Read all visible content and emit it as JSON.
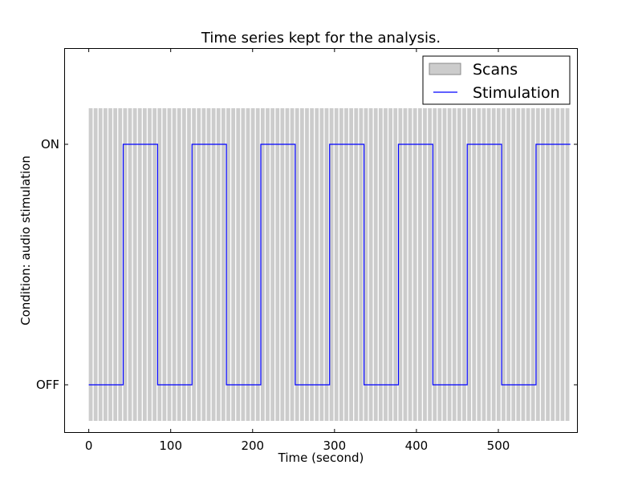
{
  "chart_data": {
    "type": "line",
    "title": "Time series kept for the analysis.",
    "xlabel": "Time (second)",
    "ylabel": "Condition: audio stimulation",
    "xlim": [
      -30,
      597
    ],
    "ylim": [
      -0.2,
      1.4
    ],
    "x_ticks": [
      0,
      100,
      200,
      300,
      400,
      500
    ],
    "x_tick_labels": [
      "0",
      "100",
      "200",
      "300",
      "400",
      "500"
    ],
    "y_ticks": [
      0,
      1
    ],
    "y_tick_labels": [
      "OFF",
      "ON"
    ],
    "grid": false,
    "legend_position": "top-right",
    "scans": {
      "name": "Scans",
      "color": "#cccccc",
      "legend_edge_color": "#888888",
      "start": 0,
      "end": 588,
      "interval": 6,
      "count": 98,
      "y_bottom": -0.15,
      "y_top": 1.15
    },
    "series": [
      {
        "name": "Stimulation",
        "color": "#0000ff",
        "step": true,
        "x": [
          0,
          42,
          84,
          126,
          168,
          210,
          252,
          294,
          336,
          378,
          420,
          462,
          504,
          546,
          588
        ],
        "values": [
          0,
          1,
          0,
          1,
          0,
          1,
          0,
          1,
          0,
          1,
          0,
          1,
          0,
          1,
          1
        ]
      }
    ]
  }
}
